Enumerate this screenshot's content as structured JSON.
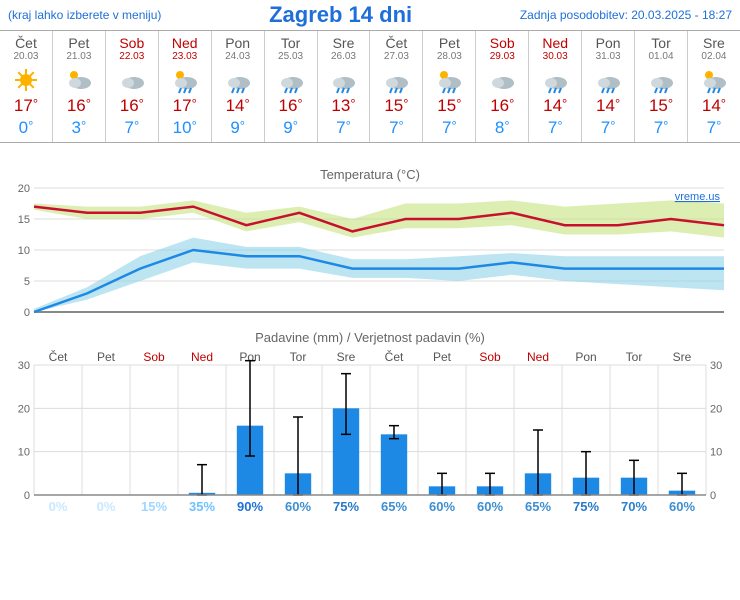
{
  "header": {
    "menu_note": "(kraj lahko izberete v meniju)",
    "title": "Zagreb 14 dni",
    "updated": "Zadnja posodobitev: 20.03.2025 - 18:27"
  },
  "days": [
    {
      "dow": "Čet",
      "date": "20.03",
      "weekend": false,
      "icon": "sun",
      "hi": 17,
      "lo": 0
    },
    {
      "dow": "Pet",
      "date": "21.03",
      "weekend": false,
      "icon": "suncloud",
      "hi": 16,
      "lo": 3
    },
    {
      "dow": "Sob",
      "date": "22.03",
      "weekend": true,
      "icon": "cloud",
      "hi": 16,
      "lo": 7
    },
    {
      "dow": "Ned",
      "date": "23.03",
      "weekend": true,
      "icon": "lightrain",
      "hi": 17,
      "lo": 10
    },
    {
      "dow": "Pon",
      "date": "24.03",
      "weekend": false,
      "icon": "rain",
      "hi": 14,
      "lo": 9
    },
    {
      "dow": "Tor",
      "date": "25.03",
      "weekend": false,
      "icon": "rain",
      "hi": 16,
      "lo": 9
    },
    {
      "dow": "Sre",
      "date": "26.03",
      "weekend": false,
      "icon": "rain",
      "hi": 13,
      "lo": 7
    },
    {
      "dow": "Čet",
      "date": "27.03",
      "weekend": false,
      "icon": "rain",
      "hi": 15,
      "lo": 7
    },
    {
      "dow": "Pet",
      "date": "28.03",
      "weekend": false,
      "icon": "lightrain",
      "hi": 15,
      "lo": 7
    },
    {
      "dow": "Sob",
      "date": "29.03",
      "weekend": true,
      "icon": "cloud",
      "hi": 16,
      "lo": 8
    },
    {
      "dow": "Ned",
      "date": "30.03",
      "weekend": true,
      "icon": "rain",
      "hi": 14,
      "lo": 7
    },
    {
      "dow": "Pon",
      "date": "31.03",
      "weekend": false,
      "icon": "rain",
      "hi": 14,
      "lo": 7
    },
    {
      "dow": "Tor",
      "date": "01.04",
      "weekend": false,
      "icon": "rain",
      "hi": 15,
      "lo": 7
    },
    {
      "dow": "Sre",
      "date": "02.04",
      "weekend": false,
      "icon": "lightrain",
      "hi": 14,
      "lo": 7
    }
  ],
  "temp_chart": {
    "title": "Temperatura (°C)",
    "watermark": "vreme.us",
    "ylim": [
      0,
      20
    ],
    "ytick_step": 5,
    "grid_color": "#dcdcdc",
    "axis_color": "#888",
    "hi_line_color": "#c8102e",
    "hi_band_color": "#c5e27f",
    "lo_line_color": "#1e88e5",
    "lo_band_color": "#8fd3e8",
    "hi": [
      17,
      16,
      16,
      17,
      14,
      16,
      13,
      15,
      15,
      16,
      14,
      14,
      15,
      14
    ],
    "hi_upper": [
      17.5,
      17,
      17,
      18,
      16,
      17,
      15,
      17.5,
      17.5,
      18,
      17,
      17.5,
      18,
      17.5
    ],
    "hi_lower": [
      16.5,
      15,
      15,
      16,
      13,
      14.5,
      12,
      13.5,
      13.5,
      14,
      12.5,
      12.5,
      13,
      12
    ],
    "lo": [
      0,
      3,
      7,
      10,
      9,
      9,
      7,
      7,
      7,
      8,
      7,
      7,
      7,
      7
    ],
    "lo_upper": [
      0.5,
      4,
      9,
      12,
      10.5,
      10.5,
      8.5,
      8.5,
      9,
      9.5,
      9,
      9,
      9,
      9
    ],
    "lo_lower": [
      0,
      2,
      5,
      8,
      7,
      7,
      5.5,
      5.5,
      5,
      6,
      5,
      4.5,
      4,
      3.5
    ]
  },
  "precip_chart": {
    "title": "Padavine (mm) / Verjetnost padavin (%)",
    "ylim_mm": [
      0,
      30
    ],
    "ytick_step": 10,
    "bar_color": "#1e88e5",
    "grid_color": "#dcdcdc",
    "axis_color": "#888",
    "error_color": "#000000",
    "mm": [
      0,
      0,
      0,
      0.5,
      16,
      5,
      20,
      14,
      2,
      2,
      5,
      4,
      4,
      1
    ],
    "mm_hi": [
      0,
      0,
      0,
      7,
      31,
      18,
      28,
      16,
      5,
      5,
      15,
      10,
      8,
      5
    ],
    "mm_lo": [
      0,
      0,
      0,
      0,
      9,
      0,
      14,
      13,
      0,
      0,
      0,
      0,
      0,
      0
    ],
    "pct": [
      0,
      0,
      15,
      35,
      90,
      60,
      75,
      65,
      60,
      60,
      65,
      75,
      70,
      60
    ],
    "pct_colors": [
      "#c9e8ff",
      "#c9e8ff",
      "#9fd7ff",
      "#6fc1ff",
      "#1e6fd9",
      "#3e8ed0",
      "#2878c9",
      "#3e8ed0",
      "#3e8ed0",
      "#3e8ed0",
      "#3e8ed0",
      "#2878c9",
      "#2e80cc",
      "#3e8ed0"
    ]
  }
}
